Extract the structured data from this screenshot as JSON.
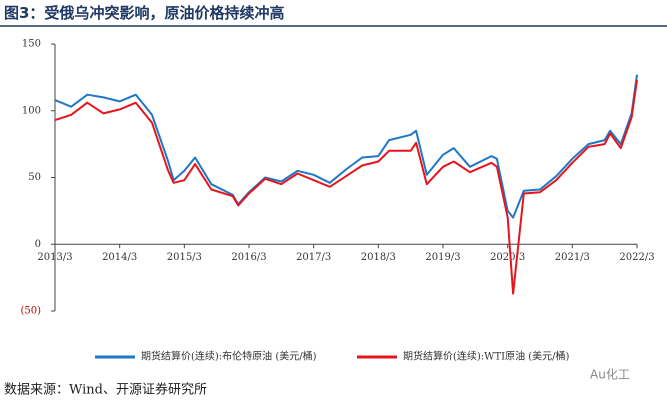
{
  "chart_data": {
    "type": "line",
    "title": "图3：受俄乌冲突影响，原油价格持续冲高",
    "source": "数据来源：Wind、开源证券研究所",
    "watermark": "Au化工",
    "x": [
      "2013/3",
      "2013/6",
      "2013/9",
      "2013/12",
      "2014/3",
      "2014/6",
      "2014/9",
      "2014/12",
      "2015/1",
      "2015/3",
      "2015/5",
      "2015/8",
      "2015/12",
      "2016/1",
      "2016/3",
      "2016/6",
      "2016/9",
      "2016/12",
      "2017/3",
      "2017/6",
      "2017/9",
      "2017/12",
      "2018/3",
      "2018/5",
      "2018/9",
      "2018/10",
      "2018/12",
      "2019/3",
      "2019/5",
      "2019/8",
      "2019/12",
      "2020/1",
      "2020/3",
      "2020/4",
      "2020/6",
      "2020/9",
      "2020/12",
      "2021/3",
      "2021/6",
      "2021/9",
      "2021/10",
      "2021/12",
      "2022/2",
      "2022/3"
    ],
    "series": [
      {
        "name": "期货结算价(连续):布伦特原油 (美元/桶)",
        "color": "#1f77c8",
        "values": [
          108,
          103,
          112,
          110,
          107,
          112,
          97,
          62,
          48,
          55,
          65,
          45,
          37,
          30,
          39,
          50,
          47,
          55,
          52,
          46,
          56,
          65,
          66,
          78,
          82,
          85,
          52,
          67,
          72,
          58,
          66,
          64,
          25,
          20,
          40,
          41,
          51,
          64,
          75,
          78,
          85,
          75,
          98,
          127
        ]
      },
      {
        "name": "期货结算价(连续):WTI原油 (美元/桶)",
        "color": "#e8141c",
        "values": [
          93,
          97,
          106,
          98,
          101,
          106,
          91,
          55,
          46,
          48,
          60,
          41,
          36,
          29,
          38,
          49,
          45,
          53,
          48,
          43,
          51,
          59,
          62,
          70,
          70,
          76,
          45,
          58,
          62,
          54,
          61,
          58,
          20,
          -37,
          38,
          39,
          48,
          61,
          73,
          75,
          83,
          72,
          95,
          123
        ]
      }
    ],
    "ylim": [
      -50,
      150
    ],
    "yticks": [
      {
        "value": -50,
        "label": "(50)"
      },
      0,
      50,
      100,
      150
    ],
    "xticks": [
      "2013/3",
      "2014/3",
      "2015/3",
      "2016/3",
      "2017/3",
      "2018/3",
      "2019/3",
      "2020/3",
      "2021/3",
      "2022/3"
    ]
  }
}
